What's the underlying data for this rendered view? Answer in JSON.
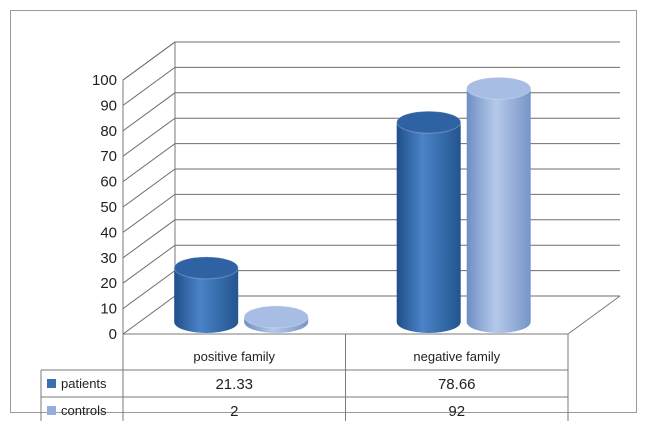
{
  "chart_data": {
    "type": "bar",
    "style": "3d-cylinder",
    "categories": [
      "positive  family",
      "negative family"
    ],
    "series": [
      {
        "name": "patients",
        "values": [
          21.33,
          78.66
        ],
        "color": "#3c6fb0"
      },
      {
        "name": "controls",
        "values": [
          2,
          92
        ],
        "color": "#93aedc"
      }
    ],
    "yticks": [
      "0",
      "10",
      "20",
      "30",
      "40",
      "50",
      "60",
      "70",
      "80",
      "90",
      "100"
    ],
    "ylim": [
      0,
      100
    ],
    "grid": true,
    "data_table": [
      {
        "series": "patients",
        "cells": [
          "21.33",
          "78.66"
        ]
      },
      {
        "series": "controls",
        "cells": [
          "2",
          "92"
        ]
      }
    ]
  }
}
